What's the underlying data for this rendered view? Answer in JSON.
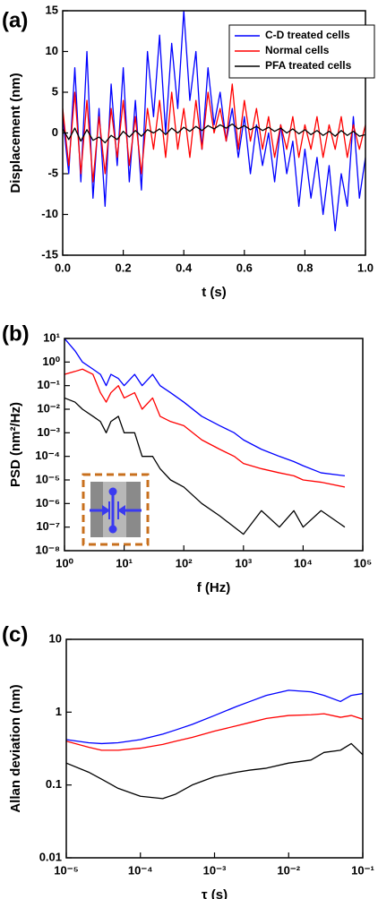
{
  "chart_data": [
    {
      "type": "line",
      "panel_label": "(a)",
      "x_label": "t (s)",
      "y_label": "Displacement (nm)",
      "xlim": [
        0,
        1
      ],
      "ylim": [
        -15,
        15
      ],
      "xticks": [
        {
          "value": 0,
          "label": "0.0"
        },
        0.2,
        0.4,
        0.6,
        0.8,
        {
          "value": 1,
          "label": "1.0"
        }
      ],
      "yticks": [
        -15,
        -10,
        -5,
        0,
        5,
        10,
        15
      ],
      "legend": "upper right",
      "x": [
        0,
        0.02,
        0.04,
        0.06,
        0.08,
        0.1,
        0.12,
        0.14,
        0.16,
        0.18,
        0.2,
        0.22,
        0.24,
        0.26,
        0.28,
        0.3,
        0.32,
        0.34,
        0.36,
        0.38,
        0.4,
        0.42,
        0.44,
        0.46,
        0.48,
        0.5,
        0.52,
        0.54,
        0.56,
        0.58,
        0.6,
        0.62,
        0.64,
        0.66,
        0.68,
        0.7,
        0.72,
        0.74,
        0.76,
        0.78,
        0.8,
        0.82,
        0.84,
        0.86,
        0.88,
        0.9,
        0.92,
        0.94,
        0.96,
        0.98,
        1
      ],
      "series": [
        {
          "name": "C-D treated cells",
          "color": "#0000ff",
          "values": [
            2,
            -5,
            8,
            -6,
            10,
            -8,
            3,
            -9,
            6,
            -4,
            8,
            -6,
            4,
            -7,
            10,
            2,
            12,
            0,
            11,
            3,
            15,
            4,
            10,
            -2,
            8,
            1,
            5,
            -1,
            3,
            -3,
            2,
            -5,
            1,
            -4,
            0,
            -6,
            1,
            -5,
            -1,
            -9,
            -2,
            -8,
            -3,
            -10,
            -4,
            -12,
            -5,
            -9,
            2,
            -8,
            -3
          ]
        },
        {
          "name": "Normal cells",
          "color": "#ff0000",
          "values": [
            3,
            -4,
            5,
            -5,
            4,
            -6,
            2,
            -5,
            3,
            -3,
            4,
            -4,
            2,
            -5,
            3,
            -2,
            4,
            -3,
            5,
            -2,
            3,
            -3,
            4,
            -2,
            5,
            0,
            3,
            -1,
            6,
            -2,
            4,
            -1,
            3,
            -2,
            2,
            -3,
            1,
            -2,
            2,
            -3,
            1,
            -2,
            2,
            -3,
            1,
            -2,
            2,
            -3,
            1,
            -2,
            1
          ]
        },
        {
          "name": "PFA treated cells",
          "color": "#000000",
          "values": [
            0.5,
            -0.8,
            0.6,
            -1,
            0.4,
            -0.9,
            -0.5,
            -1.2,
            -0.3,
            -0.8,
            0.2,
            -0.5,
            0.3,
            -0.4,
            0.4,
            0,
            0.5,
            -0.2,
            0.6,
            0,
            0.7,
            0.2,
            0.8,
            0.3,
            0.9,
            0.5,
            1,
            0.6,
            1.1,
            0.5,
            0.9,
            0.4,
            0.8,
            0.3,
            0.7,
            0.2,
            0.6,
            0,
            0.5,
            -0.1,
            0.4,
            -0.2,
            0.3,
            -0.3,
            0.2,
            -0.4,
            0.3,
            -0.3,
            0.2,
            -0.4,
            -0.2
          ]
        }
      ]
    },
    {
      "type": "line",
      "panel_label": "(b)",
      "x_label": "f (Hz)",
      "y_label": "PSD (nm²/Hz)",
      "xlog": true,
      "ylog": true,
      "xlim": [
        1,
        100000
      ],
      "ylim": [
        1e-08,
        10
      ],
      "xticks": [
        {
          "value": 1,
          "label": "10⁰"
        },
        {
          "value": 10,
          "label": "10¹"
        },
        {
          "value": 100,
          "label": "10²"
        },
        {
          "value": 1000,
          "label": "10³"
        },
        {
          "value": 10000,
          "label": "10⁴"
        },
        {
          "value": 100000,
          "label": "10⁵"
        }
      ],
      "yticks": [
        {
          "value": 1e-08,
          "label": "10⁻⁸"
        },
        {
          "value": 1e-07,
          "label": "10⁻⁷"
        },
        {
          "value": 1e-06,
          "label": "10⁻⁶"
        },
        {
          "value": 1e-05,
          "label": "10⁻⁵"
        },
        {
          "value": 0.0001,
          "label": "10⁻⁴"
        },
        {
          "value": 0.001,
          "label": "10⁻³"
        },
        {
          "value": 0.01,
          "label": "10⁻²"
        },
        {
          "value": 0.1,
          "label": "10⁻¹"
        },
        {
          "value": 1,
          "label": "10⁰"
        },
        {
          "value": 10,
          "label": "10¹"
        }
      ],
      "x": [
        1,
        1.5,
        2,
        3,
        4,
        5,
        6,
        8,
        10,
        15,
        20,
        30,
        40,
        60,
        100,
        200,
        400,
        700,
        1000,
        2000,
        4000,
        7000,
        10000,
        20000,
        50000
      ],
      "series": [
        {
          "color": "#0000ff",
          "values": [
            10,
            3,
            1,
            0.5,
            0.3,
            0.1,
            0.3,
            0.2,
            0.1,
            0.3,
            0.1,
            0.3,
            0.1,
            0.05,
            0.02,
            0.005,
            0.002,
            0.001,
            0.0005,
            0.0002,
            0.0001,
            6e-05,
            4e-05,
            2e-05,
            1.5e-05
          ]
        },
        {
          "color": "#ff0000",
          "values": [
            0.3,
            0.4,
            0.5,
            0.3,
            0.05,
            0.02,
            0.05,
            0.1,
            0.03,
            0.05,
            0.01,
            0.03,
            0.005,
            0.003,
            0.002,
            0.0005,
            0.0002,
            0.0001,
            5e-05,
            3e-05,
            2e-05,
            1.5e-05,
            1e-05,
            8e-06,
            5e-06
          ]
        },
        {
          "color": "#000000",
          "values": [
            0.03,
            0.02,
            0.01,
            0.005,
            0.003,
            0.001,
            0.003,
            0.005,
            0.001,
            0.001,
            0.0001,
            0.0001,
            3e-05,
            1e-05,
            5e-06,
            1e-06,
            3e-07,
            1e-07,
            5e-08,
            5e-07,
            1e-07,
            5e-07,
            1e-07,
            5e-07,
            1e-07
          ]
        }
      ]
    },
    {
      "type": "line",
      "panel_label": "(c)",
      "x_label": "τ (s)",
      "y_label": "Allan deviation (nm)",
      "xlog": true,
      "ylog": true,
      "xlim": [
        1e-05,
        0.1
      ],
      "ylim": [
        0.01,
        10
      ],
      "xticks": [
        {
          "value": 1e-05,
          "label": "10⁻⁵"
        },
        {
          "value": 0.0001,
          "label": "10⁻⁴"
        },
        {
          "value": 0.001,
          "label": "10⁻³"
        },
        {
          "value": 0.01,
          "label": "10⁻²"
        },
        {
          "value": 0.1,
          "label": "10⁻¹"
        }
      ],
      "yticks": [
        0.01,
        0.1,
        1,
        10
      ],
      "x": [
        1e-05,
        2e-05,
        3e-05,
        5e-05,
        0.0001,
        0.0002,
        0.0003,
        0.0005,
        0.001,
        0.002,
        0.003,
        0.005,
        0.01,
        0.02,
        0.03,
        0.05,
        0.07,
        0.1
      ],
      "series": [
        {
          "color": "#0000ff",
          "values": [
            0.42,
            0.38,
            0.37,
            0.38,
            0.42,
            0.5,
            0.57,
            0.68,
            0.9,
            1.2,
            1.4,
            1.7,
            2.0,
            1.9,
            1.7,
            1.4,
            1.7,
            1.8
          ]
        },
        {
          "color": "#ff0000",
          "values": [
            0.4,
            0.33,
            0.3,
            0.3,
            0.32,
            0.36,
            0.4,
            0.45,
            0.55,
            0.65,
            0.72,
            0.82,
            0.9,
            0.92,
            0.95,
            0.85,
            0.9,
            0.8
          ]
        },
        {
          "color": "#000000",
          "values": [
            0.2,
            0.15,
            0.12,
            0.09,
            0.07,
            0.065,
            0.075,
            0.1,
            0.13,
            0.15,
            0.16,
            0.17,
            0.2,
            0.22,
            0.28,
            0.3,
            0.37,
            0.26
          ]
        }
      ]
    }
  ]
}
